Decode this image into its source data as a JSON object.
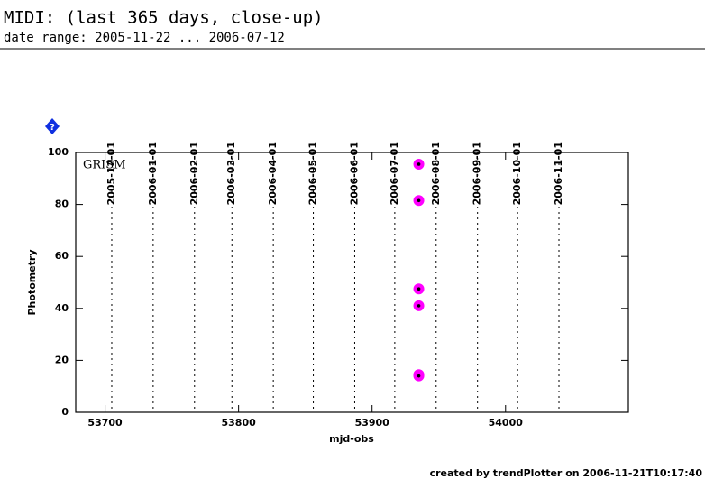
{
  "header": {
    "title": "MIDI: (last 365 days, close-up)",
    "subtitle": "date range: 2005-11-22 ... 2006-07-12"
  },
  "help_icon": "?",
  "chart_data": {
    "type": "scatter",
    "annotation": "GRISM",
    "x_label": "mjd-obs",
    "y_label": "Photometry",
    "xlim": [
      53678,
      54092
    ],
    "ylim": [
      0,
      100
    ],
    "xticks": [
      53700,
      53800,
      53900,
      54000
    ],
    "yticks": [
      0,
      20,
      40,
      60,
      80,
      100
    ],
    "date_lines": [
      {
        "value": 53705,
        "label": "2005-12-01"
      },
      {
        "value": 53736,
        "label": "2006-01-01"
      },
      {
        "value": 53767,
        "label": "2006-02-01"
      },
      {
        "value": 53795,
        "label": "2006-03-01"
      },
      {
        "value": 53826,
        "label": "2006-04-01"
      },
      {
        "value": 53856,
        "label": "2006-05-01"
      },
      {
        "value": 53887,
        "label": "2006-06-01"
      },
      {
        "value": 53917,
        "label": "2006-07-01"
      },
      {
        "value": 53948,
        "label": "2006-08-01"
      },
      {
        "value": 53979,
        "label": "2006-09-01"
      },
      {
        "value": 54009,
        "label": "2006-10-01"
      },
      {
        "value": 54040,
        "label": "2006-11-01"
      }
    ],
    "series": [
      {
        "name": "GRISM",
        "color": "#ff00ff",
        "x": [
          53935,
          53935,
          53935,
          53935,
          53935,
          53935
        ],
        "values": [
          95.5,
          81.5,
          47.5,
          41,
          14.5,
          14
        ]
      }
    ]
  },
  "footer": "created by trendPlotter on 2006-11-21T10:17:40"
}
